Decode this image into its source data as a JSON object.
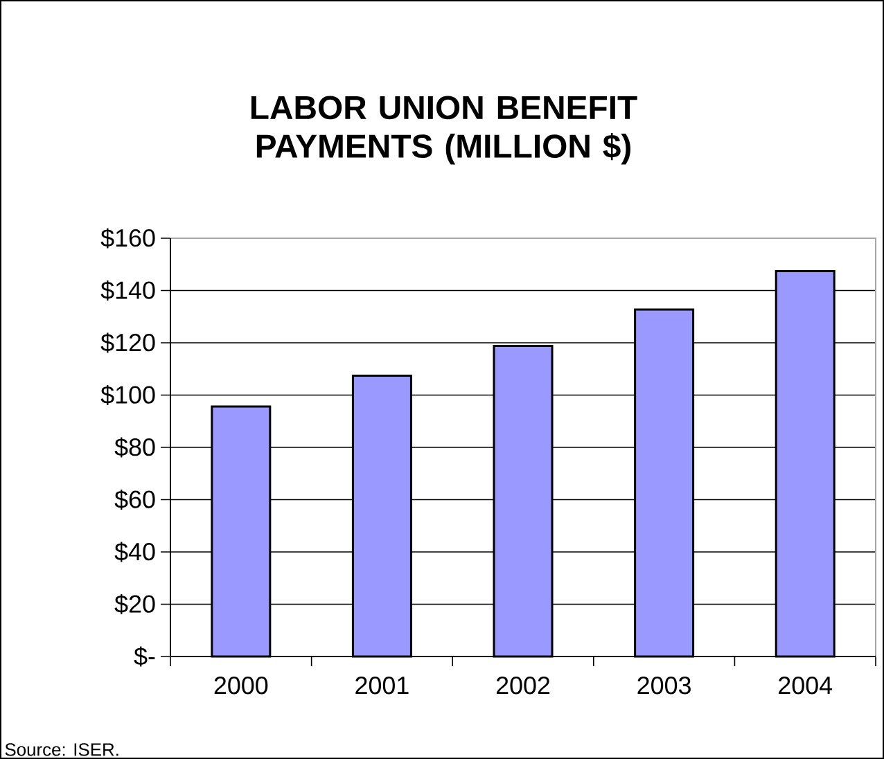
{
  "chart_data": {
    "type": "bar",
    "title": "LABOR UNION BENEFIT PAYMENTS (MILLION $)",
    "categories": [
      "2000",
      "2001",
      "2002",
      "2003",
      "2004"
    ],
    "values": [
      95.6,
      107.4,
      118.8,
      132.7,
      147.4
    ],
    "color": "#9999ff",
    "ylim": [
      0,
      160
    ],
    "yticks": [
      {
        "value": 0,
        "label": "$-"
      },
      {
        "value": 20,
        "label": "$20"
      },
      {
        "value": 40,
        "label": "$40"
      },
      {
        "value": 60,
        "label": "$60"
      },
      {
        "value": 80,
        "label": "$80"
      },
      {
        "value": 100,
        "label": "$100"
      },
      {
        "value": 120,
        "label": "$120"
      },
      {
        "value": 140,
        "label": "$140"
      },
      {
        "value": 160,
        "label": "$160"
      }
    ],
    "grid": "y",
    "annotations": [
      "Source: ISER."
    ]
  }
}
